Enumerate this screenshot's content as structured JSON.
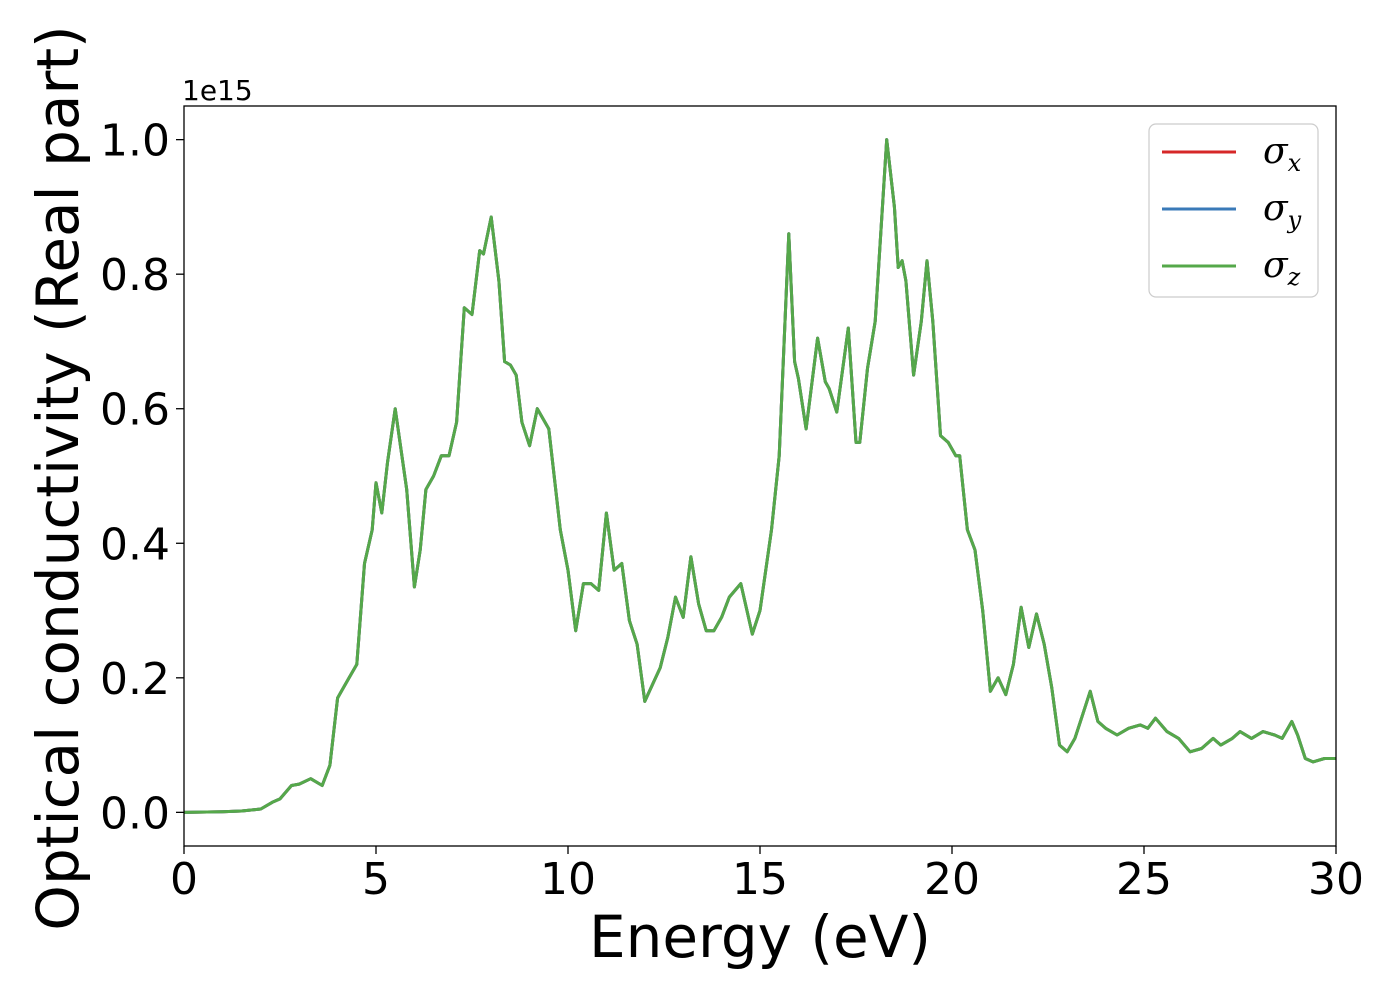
{
  "chart_data": {
    "type": "line",
    "title": "",
    "xlabel": "Energy (eV)",
    "ylabel": "Optical conductivity (Real part)",
    "y_offset_label": "1e15",
    "xlim": [
      0,
      30
    ],
    "ylim": [
      -0.05,
      1.05
    ],
    "x_ticks": [
      0,
      5,
      10,
      15,
      20,
      25,
      30
    ],
    "x_tick_labels": [
      "0",
      "5",
      "10",
      "15",
      "20",
      "25",
      "30"
    ],
    "y_ticks": [
      0.0,
      0.2,
      0.4,
      0.6,
      0.8,
      1.0
    ],
    "y_tick_labels": [
      "0.0",
      "0.2",
      "0.4",
      "0.6",
      "0.8",
      "1.0"
    ],
    "grid": false,
    "legend_position": "top-right",
    "colors": {
      "sigma_x": "#d62728",
      "sigma_y": "#3a7ab8",
      "sigma_z": "#55a84a"
    },
    "series": [
      {
        "name": "σx",
        "symbol": "σ",
        "sub": "x",
        "key": "sigma_x"
      },
      {
        "name": "σy",
        "symbol": "σ",
        "sub": "y",
        "key": "sigma_y"
      },
      {
        "name": "σz",
        "symbol": "σ",
        "sub": "z",
        "key": "sigma_z"
      }
    ],
    "x": [
      0,
      1.0,
      1.5,
      2.0,
      2.3,
      2.5,
      2.8,
      3.0,
      3.3,
      3.6,
      3.8,
      4.0,
      4.1,
      4.3,
      4.5,
      4.7,
      4.9,
      5.0,
      5.15,
      5.3,
      5.5,
      5.8,
      6.0,
      6.15,
      6.3,
      6.5,
      6.7,
      6.9,
      7.1,
      7.3,
      7.5,
      7.7,
      7.8,
      8.0,
      8.2,
      8.35,
      8.5,
      8.65,
      8.8,
      9.0,
      9.2,
      9.5,
      9.8,
      10.0,
      10.2,
      10.4,
      10.6,
      10.8,
      11.0,
      11.2,
      11.4,
      11.6,
      11.8,
      12.0,
      12.2,
      12.4,
      12.6,
      12.8,
      13.0,
      13.2,
      13.4,
      13.6,
      13.8,
      14.0,
      14.2,
      14.5,
      14.8,
      15.0,
      15.3,
      15.5,
      15.75,
      15.9,
      16.0,
      16.2,
      16.5,
      16.7,
      16.8,
      17.0,
      17.3,
      17.5,
      17.6,
      17.8,
      18.0,
      18.3,
      18.5,
      18.6,
      18.7,
      18.8,
      19.0,
      19.2,
      19.35,
      19.5,
      19.7,
      19.9,
      20.1,
      20.2,
      20.4,
      20.6,
      20.8,
      21.0,
      21.2,
      21.4,
      21.6,
      21.8,
      22.0,
      22.2,
      22.4,
      22.6,
      22.8,
      23.0,
      23.2,
      23.4,
      23.6,
      23.8,
      24.0,
      24.3,
      24.6,
      24.9,
      25.1,
      25.3,
      25.6,
      25.9,
      26.2,
      26.5,
      26.8,
      27.0,
      27.3,
      27.5,
      27.8,
      28.1,
      28.4,
      28.6,
      28.85,
      29.0,
      29.2,
      29.4,
      29.7,
      30.0
    ],
    "y": [
      0.0,
      0.001,
      0.002,
      0.005,
      0.015,
      0.02,
      0.04,
      0.042,
      0.05,
      0.04,
      0.07,
      0.17,
      0.18,
      0.2,
      0.22,
      0.37,
      0.42,
      0.49,
      0.445,
      0.52,
      0.6,
      0.48,
      0.335,
      0.39,
      0.48,
      0.5,
      0.53,
      0.53,
      0.58,
      0.75,
      0.74,
      0.835,
      0.83,
      0.885,
      0.79,
      0.67,
      0.665,
      0.65,
      0.58,
      0.545,
      0.6,
      0.57,
      0.42,
      0.36,
      0.27,
      0.34,
      0.34,
      0.33,
      0.445,
      0.36,
      0.37,
      0.285,
      0.25,
      0.165,
      0.19,
      0.215,
      0.26,
      0.32,
      0.29,
      0.38,
      0.31,
      0.27,
      0.27,
      0.29,
      0.32,
      0.34,
      0.265,
      0.3,
      0.42,
      0.53,
      0.86,
      0.67,
      0.645,
      0.57,
      0.705,
      0.64,
      0.63,
      0.595,
      0.72,
      0.55,
      0.55,
      0.66,
      0.73,
      1.0,
      0.9,
      0.81,
      0.82,
      0.79,
      0.65,
      0.73,
      0.82,
      0.73,
      0.56,
      0.55,
      0.53,
      0.53,
      0.42,
      0.39,
      0.3,
      0.18,
      0.2,
      0.175,
      0.22,
      0.305,
      0.245,
      0.295,
      0.25,
      0.185,
      0.1,
      0.09,
      0.11,
      0.145,
      0.18,
      0.135,
      0.125,
      0.115,
      0.125,
      0.13,
      0.125,
      0.14,
      0.12,
      0.11,
      0.09,
      0.095,
      0.11,
      0.1,
      0.11,
      0.12,
      0.11,
      0.12,
      0.115,
      0.11,
      0.135,
      0.115,
      0.08,
      0.075,
      0.08,
      0.08
    ]
  }
}
